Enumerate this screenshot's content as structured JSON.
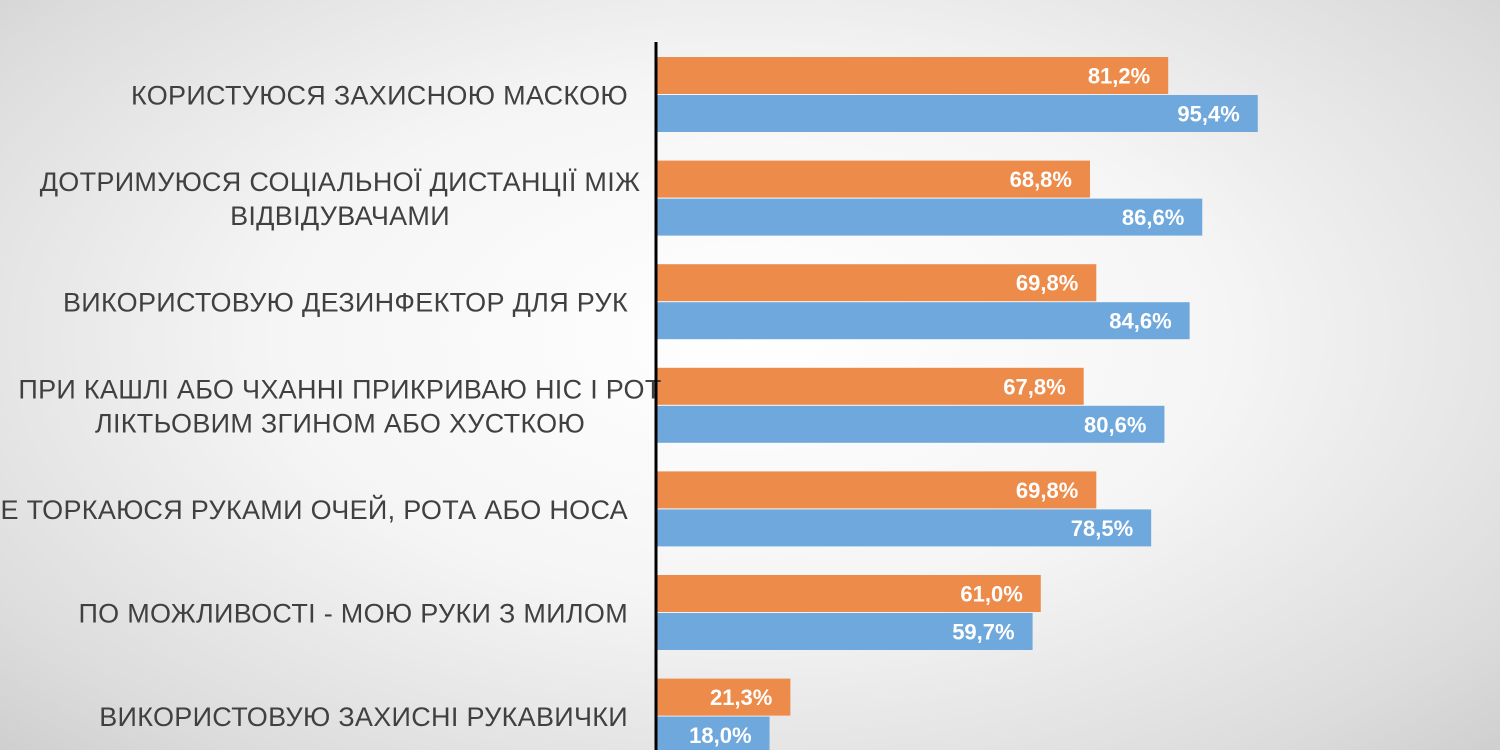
{
  "chart_data": {
    "type": "bar",
    "orientation": "horizontal",
    "categories": [
      [
        "КОРИСТУЮСЯ ЗАХИСНОЮ МАСКОЮ"
      ],
      [
        "ДОТРИМУЮСЯ СОЦІАЛЬНОЇ ДИСТАНЦІЇ МІЖ",
        "ВІДВІДУВАЧАМИ"
      ],
      [
        "ВИКОРИСТОВУЮ ДЕЗИНФЕКТОР ДЛЯ РУК"
      ],
      [
        "ПРИ КАШЛІ АБО ЧХАННІ ПРИКРИВАЮ НІС І РОТ",
        "ЛІКТЬОВИМ ЗГИНОМ АБО ХУСТКОЮ"
      ],
      [
        "НЕ ТОРКАЮСЯ  РУКАМИ ОЧЕЙ, РОТА АБО НОСА"
      ],
      [
        "ПО МОЖЛИВОСТІ - МОЮ РУКИ З МИЛОМ"
      ],
      [
        "ВИКОРИСТОВУЮ ЗАХИСНІ РУКАВИЧКИ"
      ]
    ],
    "series": [
      {
        "color": "#ED8B4A",
        "values": [
          81.2,
          68.8,
          69.8,
          67.8,
          69.8,
          61.0,
          21.3
        ],
        "labels": [
          "81,2%",
          "68,8%",
          "69,8%",
          "67,8%",
          "69,8%",
          "61,0%",
          "21,3%"
        ]
      },
      {
        "color": "#6FA8DC",
        "values": [
          95.4,
          86.6,
          84.6,
          80.6,
          78.5,
          59.7,
          18.0
        ],
        "labels": [
          "95,4%",
          "86,6%",
          "84,6%",
          "80,6%",
          "78,5%",
          "59,7%",
          "18,0%"
        ]
      }
    ],
    "xlim": [
      0,
      100
    ],
    "grid": false,
    "legend": "none"
  }
}
